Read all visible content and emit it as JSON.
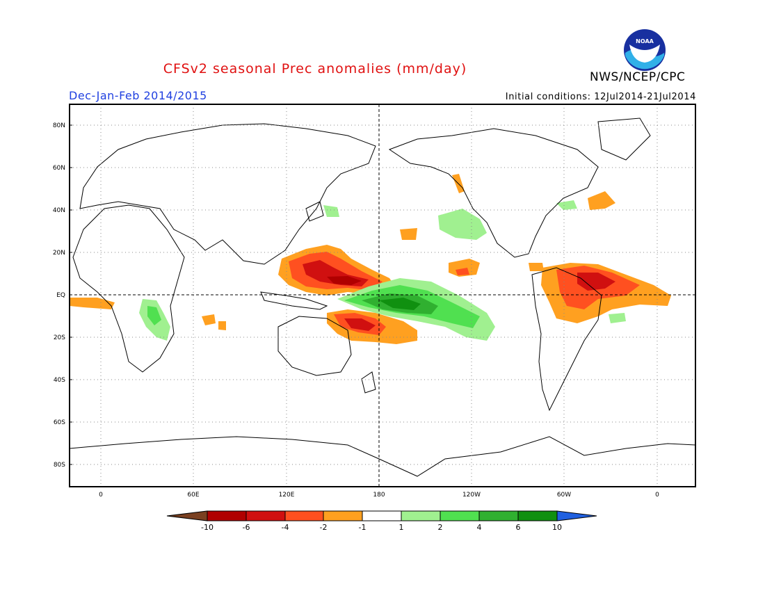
{
  "header": {
    "title": "CFSv2 seasonal Prec anomalies (mm/day)",
    "season": "Dec-Jan-Feb 2014/2015",
    "initial_conditions": "Initial conditions: 12Jul2014-21Jul2014",
    "agency": "NWS/NCEP/CPC",
    "logo_text": "NOAA"
  },
  "axes": {
    "lat_labels": [
      "80N",
      "60N",
      "40N",
      "20N",
      "EQ",
      "20S",
      "40S",
      "60S",
      "80S"
    ],
    "lon_labels": [
      "0",
      "60E",
      "120E",
      "180",
      "120W",
      "60W",
      "0"
    ]
  },
  "colorbar": {
    "labels": [
      "-10",
      "-6",
      "-4",
      "-2",
      "-1",
      "1",
      "2",
      "4",
      "6",
      "10"
    ],
    "colors": [
      "#7a4020",
      "#b00000",
      "#d01010",
      "#ff5020",
      "#ffa020",
      "#ffffff",
      "#a0f090",
      "#50e050",
      "#30b030",
      "#109010",
      "#2060e0"
    ]
  }
}
